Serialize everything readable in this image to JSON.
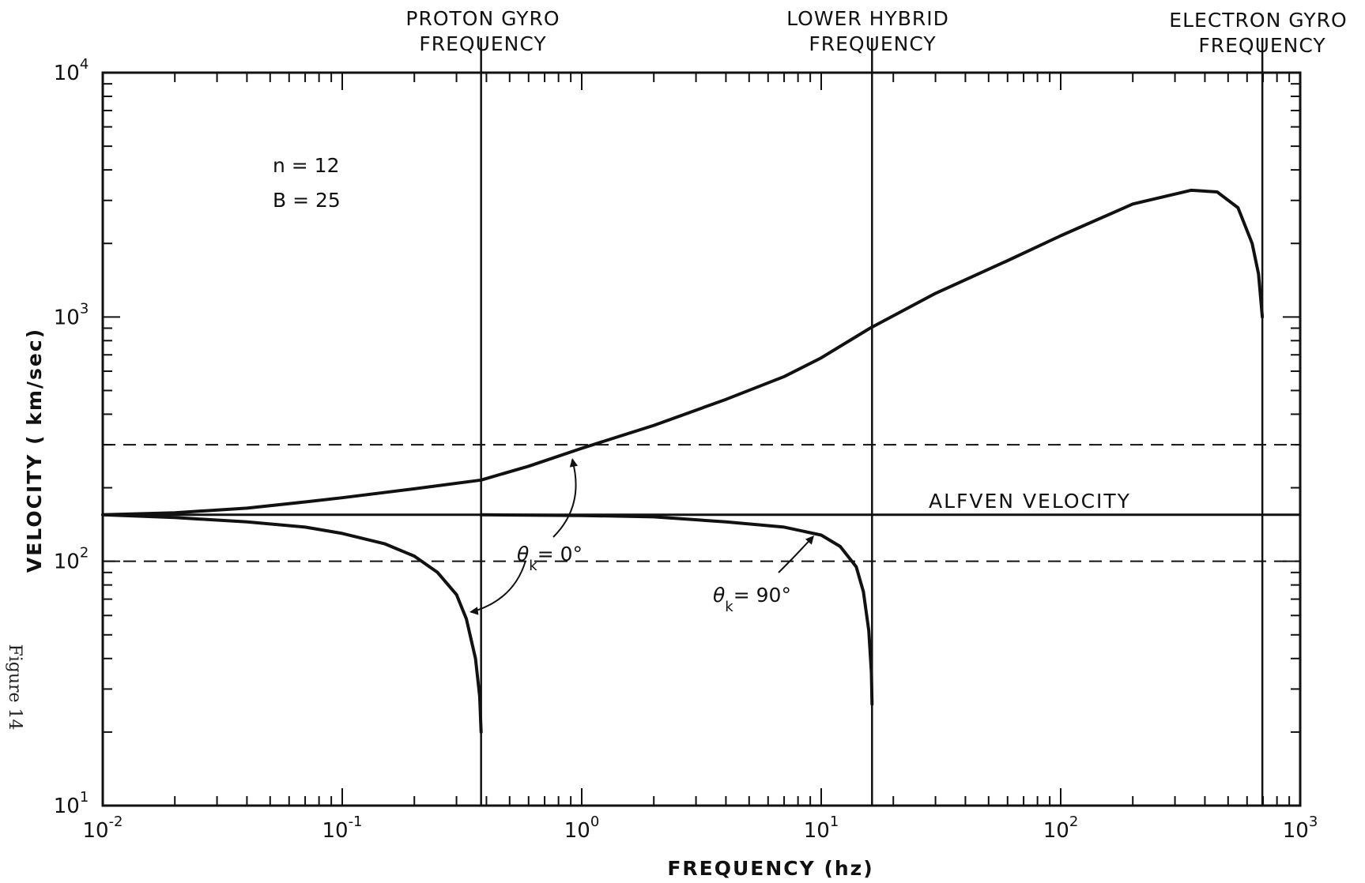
{
  "chart_data": {
    "type": "line",
    "title": "",
    "xlabel": "FREQUENCY (hz)",
    "ylabel": "VELOCITY ( km/sec)",
    "x_scale": "log",
    "y_scale": "log",
    "xlim": [
      0.01,
      1000
    ],
    "ylim": [
      10,
      10000
    ],
    "x_ticks": [
      {
        "base": "10",
        "exp": "-2"
      },
      {
        "base": "10",
        "exp": "-1"
      },
      {
        "base": "10",
        "exp": "0"
      },
      {
        "base": "10",
        "exp": "1"
      },
      {
        "base": "10",
        "exp": "2"
      },
      {
        "base": "10",
        "exp": "3"
      }
    ],
    "y_ticks": [
      {
        "base": "10",
        "exp": "1"
      },
      {
        "base": "10",
        "exp": "2"
      },
      {
        "base": "10",
        "exp": "3"
      },
      {
        "base": "10",
        "exp": "4"
      }
    ],
    "grid": false,
    "parameters": [
      "n = 12",
      "B = 25"
    ],
    "vertical_markers": [
      {
        "x": 0.38,
        "label_lines": [
          "PROTON GYRO",
          "FREQUENCY"
        ]
      },
      {
        "x": 16.3,
        "label_lines": [
          "LOWER HYBRID",
          "FREQUENCY"
        ]
      },
      {
        "x": 695,
        "label_lines": [
          "ELECTRON GYRO",
          "FREQUENCY"
        ]
      }
    ],
    "reference_lines": [
      {
        "y": 155,
        "style": "solid",
        "label": "ALFVEN VELOCITY"
      },
      {
        "y": 300,
        "style": "dashed"
      },
      {
        "y": 100,
        "style": "dashed"
      }
    ],
    "series": [
      {
        "label_symbol": "θ",
        "label_sub": "k",
        "label_value": "= 0°",
        "points": [
          [
            0.01,
            155
          ],
          [
            0.02,
            158
          ],
          [
            0.04,
            165
          ],
          [
            0.07,
            175
          ],
          [
            0.1,
            182
          ],
          [
            0.2,
            198
          ],
          [
            0.38,
            215
          ],
          [
            0.6,
            245
          ],
          [
            1.0,
            290
          ],
          [
            2,
            360
          ],
          [
            4,
            460
          ],
          [
            7,
            570
          ],
          [
            10,
            680
          ],
          [
            16,
            900
          ],
          [
            30,
            1250
          ],
          [
            60,
            1700
          ],
          [
            100,
            2150
          ],
          [
            200,
            2900
          ],
          [
            350,
            3300
          ],
          [
            450,
            3250
          ],
          [
            550,
            2800
          ],
          [
            630,
            2000
          ],
          [
            670,
            1500
          ],
          [
            695,
            1000
          ]
        ]
      },
      {
        "label_symbol": "θ",
        "label_sub": "k",
        "label_value": "= 0°",
        "points": [
          [
            0.01,
            155
          ],
          [
            0.02,
            151
          ],
          [
            0.04,
            145
          ],
          [
            0.07,
            138
          ],
          [
            0.1,
            130
          ],
          [
            0.15,
            118
          ],
          [
            0.2,
            105
          ],
          [
            0.25,
            90
          ],
          [
            0.3,
            73
          ],
          [
            0.33,
            58
          ],
          [
            0.36,
            40
          ],
          [
            0.375,
            28
          ],
          [
            0.38,
            20
          ]
        ]
      },
      {
        "label_symbol": "θ",
        "label_sub": "k",
        "label_value": "= 90°",
        "points": [
          [
            0.38,
            155
          ],
          [
            1,
            154
          ],
          [
            2,
            152
          ],
          [
            4,
            145
          ],
          [
            7,
            138
          ],
          [
            10,
            128
          ],
          [
            12,
            115
          ],
          [
            14,
            95
          ],
          [
            15,
            75
          ],
          [
            15.8,
            52
          ],
          [
            16.2,
            35
          ],
          [
            16.3,
            26
          ]
        ]
      }
    ]
  },
  "caption": "Figure 14"
}
